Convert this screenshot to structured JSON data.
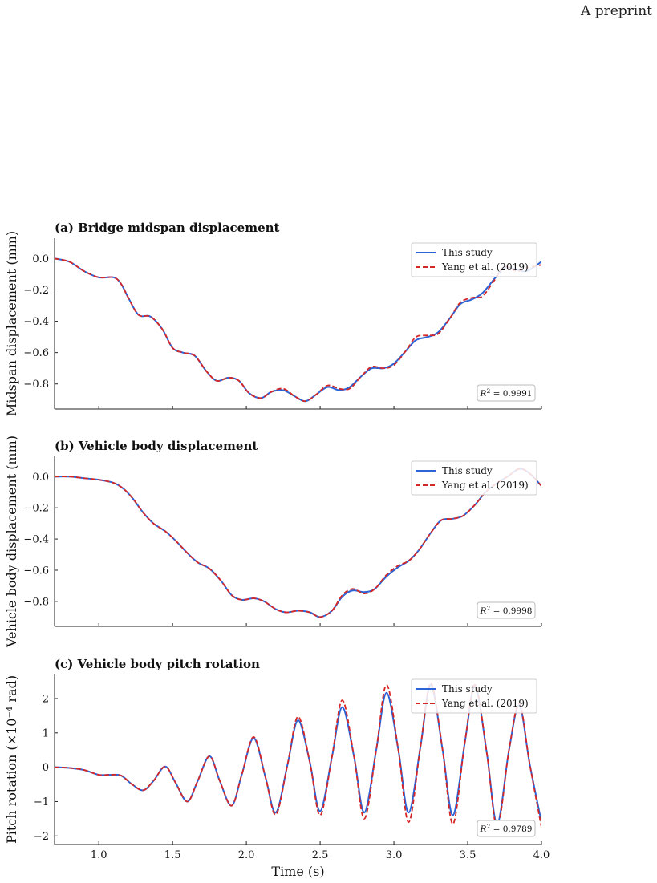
{
  "page": {
    "header_note": "A preprint"
  },
  "shared": {
    "xlabel": "Time (s)",
    "xlim": [
      0.7,
      4.0
    ],
    "xticks": [
      1.0,
      1.5,
      2.0,
      2.5,
      3.0,
      3.5,
      4.0
    ],
    "xtick_labels": [
      "1.0",
      "1.5",
      "2.0",
      "2.5",
      "3.0",
      "3.5",
      "4.0"
    ]
  },
  "colors": {
    "this_study": "#2c63d6",
    "yang": "#d62728"
  },
  "chart_data": [
    {
      "type": "line",
      "title": "(a) Bridge midspan displacement",
      "ylabel": "Midspan displacement (mm)",
      "ylim": [
        -0.96,
        0.13
      ],
      "yticks": [
        0.0,
        -0.2,
        -0.4,
        -0.6,
        -0.8
      ],
      "ytick_labels": [
        "0.0",
        "−0.2",
        "−0.4",
        "−0.6",
        "−0.8"
      ],
      "legend_position": "top-right",
      "annotation": {
        "label": "R² = 0.9991",
        "math": "R",
        "sup": "2",
        "rest": " = 0.9991"
      },
      "x": [
        0.7,
        0.8,
        0.9,
        1.0,
        1.1,
        1.15,
        1.2,
        1.27,
        1.35,
        1.43,
        1.5,
        1.57,
        1.65,
        1.73,
        1.8,
        1.88,
        1.95,
        2.02,
        2.1,
        2.17,
        2.25,
        2.33,
        2.4,
        2.47,
        2.55,
        2.63,
        2.7,
        2.78,
        2.85,
        2.93,
        3.0,
        3.08,
        3.15,
        3.23,
        3.3,
        3.38,
        3.45,
        3.53,
        3.6,
        3.68,
        3.75,
        3.83,
        3.9,
        4.0
      ],
      "series": [
        {
          "name": "This study",
          "values": [
            0.0,
            -0.02,
            -0.08,
            -0.12,
            -0.12,
            -0.16,
            -0.25,
            -0.36,
            -0.37,
            -0.45,
            -0.57,
            -0.6,
            -0.62,
            -0.72,
            -0.78,
            -0.76,
            -0.78,
            -0.86,
            -0.89,
            -0.85,
            -0.84,
            -0.88,
            -0.91,
            -0.87,
            -0.82,
            -0.84,
            -0.82,
            -0.75,
            -0.7,
            -0.7,
            -0.67,
            -0.59,
            -0.52,
            -0.5,
            -0.47,
            -0.38,
            -0.29,
            -0.26,
            -0.22,
            -0.13,
            -0.06,
            -0.07,
            -0.08,
            -0.02
          ]
        },
        {
          "name": "Yang et al. (2019)",
          "values": [
            0.0,
            -0.02,
            -0.08,
            -0.12,
            -0.12,
            -0.16,
            -0.25,
            -0.36,
            -0.37,
            -0.45,
            -0.57,
            -0.6,
            -0.62,
            -0.72,
            -0.78,
            -0.76,
            -0.78,
            -0.86,
            -0.89,
            -0.85,
            -0.83,
            -0.88,
            -0.91,
            -0.87,
            -0.81,
            -0.83,
            -0.83,
            -0.75,
            -0.69,
            -0.7,
            -0.68,
            -0.59,
            -0.5,
            -0.49,
            -0.48,
            -0.38,
            -0.28,
            -0.25,
            -0.24,
            -0.14,
            -0.05,
            -0.08,
            -0.06,
            -0.04
          ]
        }
      ]
    },
    {
      "type": "line",
      "title": "(b) Vehicle body displacement",
      "ylabel": "Vehicle body displacement (mm)",
      "ylim": [
        -0.96,
        0.13
      ],
      "yticks": [
        0.0,
        -0.2,
        -0.4,
        -0.6,
        -0.8
      ],
      "ytick_labels": [
        "0.0",
        "−0.2",
        "−0.4",
        "−0.6",
        "−0.8"
      ],
      "legend_position": "top-right",
      "annotation": {
        "label": "R² = 0.9998",
        "math": "R",
        "sup": "2",
        "rest": " = 0.9998"
      },
      "x": [
        0.7,
        0.8,
        0.9,
        1.0,
        1.1,
        1.17,
        1.23,
        1.3,
        1.37,
        1.45,
        1.52,
        1.6,
        1.67,
        1.75,
        1.83,
        1.9,
        1.97,
        2.05,
        2.12,
        2.2,
        2.27,
        2.35,
        2.43,
        2.5,
        2.58,
        2.65,
        2.72,
        2.8,
        2.87,
        2.95,
        3.03,
        3.1,
        3.17,
        3.25,
        3.32,
        3.4,
        3.47,
        3.55,
        3.62,
        3.7,
        3.77,
        3.85,
        3.92,
        4.0
      ],
      "series": [
        {
          "name": "This study",
          "values": [
            0.0,
            0.0,
            -0.01,
            -0.02,
            -0.04,
            -0.08,
            -0.14,
            -0.23,
            -0.3,
            -0.35,
            -0.41,
            -0.49,
            -0.55,
            -0.59,
            -0.67,
            -0.76,
            -0.79,
            -0.78,
            -0.8,
            -0.85,
            -0.87,
            -0.86,
            -0.87,
            -0.9,
            -0.86,
            -0.77,
            -0.73,
            -0.74,
            -0.72,
            -0.64,
            -0.58,
            -0.54,
            -0.47,
            -0.36,
            -0.28,
            -0.27,
            -0.25,
            -0.18,
            -0.1,
            -0.04,
            0.0,
            0.05,
            0.02,
            -0.06
          ]
        },
        {
          "name": "Yang et al. (2019)",
          "values": [
            0.0,
            0.0,
            -0.01,
            -0.02,
            -0.04,
            -0.08,
            -0.14,
            -0.23,
            -0.3,
            -0.35,
            -0.41,
            -0.49,
            -0.55,
            -0.59,
            -0.67,
            -0.76,
            -0.79,
            -0.78,
            -0.8,
            -0.85,
            -0.87,
            -0.86,
            -0.87,
            -0.9,
            -0.86,
            -0.76,
            -0.72,
            -0.75,
            -0.72,
            -0.63,
            -0.57,
            -0.54,
            -0.47,
            -0.36,
            -0.28,
            -0.27,
            -0.25,
            -0.18,
            -0.1,
            -0.04,
            0.0,
            0.05,
            0.02,
            -0.06
          ]
        }
      ]
    },
    {
      "type": "line",
      "title": "(c) Vehicle body pitch rotation",
      "ylabel": "Pitch rotation (×10⁻⁴ rad)",
      "ylim": [
        -2.25,
        2.7
      ],
      "yticks": [
        2,
        1,
        0,
        -1,
        -2
      ],
      "ytick_labels": [
        "2",
        "1",
        "0",
        "−1",
        "−2"
      ],
      "legend_position": "top-right",
      "annotation": {
        "label": "R² = 0.9789",
        "math": "R",
        "sup": "2",
        "rest": " = 0.9789"
      },
      "x": [
        0.7,
        0.8,
        0.9,
        1.0,
        1.07,
        1.15,
        1.22,
        1.3,
        1.37,
        1.45,
        1.52,
        1.6,
        1.67,
        1.75,
        1.82,
        1.9,
        1.97,
        2.05,
        2.13,
        2.2,
        2.28,
        2.35,
        2.43,
        2.5,
        2.58,
        2.65,
        2.73,
        2.8,
        2.88,
        2.95,
        3.03,
        3.1,
        3.18,
        3.25,
        3.33,
        3.4,
        3.48,
        3.55,
        3.63,
        3.7,
        3.78,
        3.85,
        3.92,
        4.0
      ],
      "series": [
        {
          "name": "This study",
          "values": [
            0.0,
            -0.02,
            -0.08,
            -0.22,
            -0.22,
            -0.24,
            -0.48,
            -0.67,
            -0.4,
            0.02,
            -0.45,
            -1.0,
            -0.4,
            0.32,
            -0.4,
            -1.12,
            -0.2,
            0.85,
            -0.3,
            -1.32,
            0.1,
            1.37,
            0.15,
            -1.28,
            0.3,
            1.75,
            0.3,
            -1.32,
            0.5,
            2.17,
            0.5,
            -1.32,
            0.6,
            2.4,
            0.5,
            -1.4,
            0.7,
            2.35,
            0.4,
            -1.65,
            0.5,
            1.8,
            0.1,
            -1.6
          ]
        },
        {
          "name": "Yang et al. (2019)",
          "values": [
            0.0,
            -0.02,
            -0.08,
            -0.22,
            -0.22,
            -0.24,
            -0.48,
            -0.67,
            -0.4,
            0.02,
            -0.45,
            -1.0,
            -0.4,
            0.32,
            -0.4,
            -1.12,
            -0.2,
            0.88,
            -0.3,
            -1.38,
            0.1,
            1.47,
            0.15,
            -1.4,
            0.3,
            1.95,
            0.3,
            -1.5,
            0.5,
            2.4,
            0.5,
            -1.6,
            0.6,
            2.45,
            0.5,
            -1.65,
            0.7,
            2.4,
            0.4,
            -1.75,
            0.5,
            1.85,
            0.1,
            -1.75
          ]
        }
      ]
    }
  ]
}
